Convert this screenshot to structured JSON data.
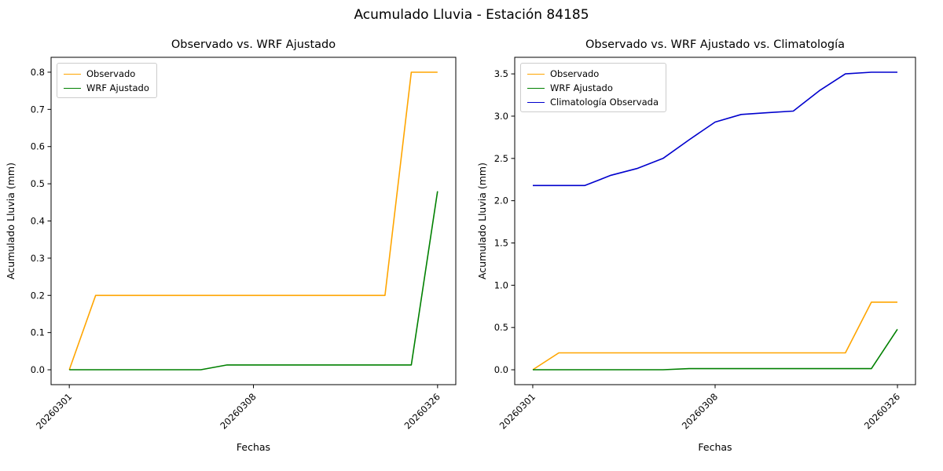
{
  "figure": {
    "suptitle": "Acumulado Lluvia - Estación 84185",
    "background": "#ffffff"
  },
  "chart_data": [
    {
      "type": "line",
      "title": "Observado vs. WRF Ajustado",
      "xlabel": "Fechas",
      "ylabel": "Acumulado Lluvia (mm)",
      "ylim": [
        -0.04,
        0.84
      ],
      "yticks": [
        0.0,
        0.1,
        0.2,
        0.3,
        0.4,
        0.5,
        0.6,
        0.7,
        0.8
      ],
      "xtick_labels": [
        "20260301",
        "20260308",
        "20260326"
      ],
      "xtick_indices": [
        0,
        7,
        14
      ],
      "grid": false,
      "legend_position": "upper left",
      "series": [
        {
          "name": "Observado",
          "color": "#ffa500",
          "values": [
            0.0,
            0.2,
            0.2,
            0.2,
            0.2,
            0.2,
            0.2,
            0.2,
            0.2,
            0.2,
            0.2,
            0.2,
            0.2,
            0.8,
            0.8
          ]
        },
        {
          "name": "WRF Ajustado",
          "color": "#008000",
          "values": [
            0.0,
            0.0,
            0.0,
            0.0,
            0.0,
            0.0,
            0.013,
            0.013,
            0.013,
            0.013,
            0.013,
            0.013,
            0.013,
            0.013,
            0.48
          ]
        }
      ]
    },
    {
      "type": "line",
      "title": "Observado vs. WRF Ajustado vs. Climatología",
      "xlabel": "Fechas",
      "ylabel": "Acumulado Lluvia (mm)",
      "ylim": [
        -0.176,
        3.696
      ],
      "yticks": [
        0.0,
        0.5,
        1.0,
        1.5,
        2.0,
        2.5,
        3.0,
        3.5
      ],
      "xtick_labels": [
        "20260301",
        "20260308",
        "20260326"
      ],
      "xtick_indices": [
        0,
        7,
        14
      ],
      "grid": false,
      "legend_position": "upper left",
      "series": [
        {
          "name": "Observado",
          "color": "#ffa500",
          "values": [
            0.0,
            0.2,
            0.2,
            0.2,
            0.2,
            0.2,
            0.2,
            0.2,
            0.2,
            0.2,
            0.2,
            0.2,
            0.2,
            0.8,
            0.8
          ]
        },
        {
          "name": "WRF Ajustado",
          "color": "#008000",
          "values": [
            0.0,
            0.0,
            0.0,
            0.0,
            0.0,
            0.0,
            0.013,
            0.013,
            0.013,
            0.013,
            0.013,
            0.013,
            0.013,
            0.013,
            0.48
          ]
        },
        {
          "name": "Climatología Observada",
          "color": "#0000cd",
          "values": [
            2.18,
            2.18,
            2.18,
            2.3,
            2.38,
            2.5,
            2.72,
            2.93,
            3.02,
            3.04,
            3.06,
            3.3,
            3.5,
            3.52,
            3.52
          ]
        }
      ]
    }
  ]
}
